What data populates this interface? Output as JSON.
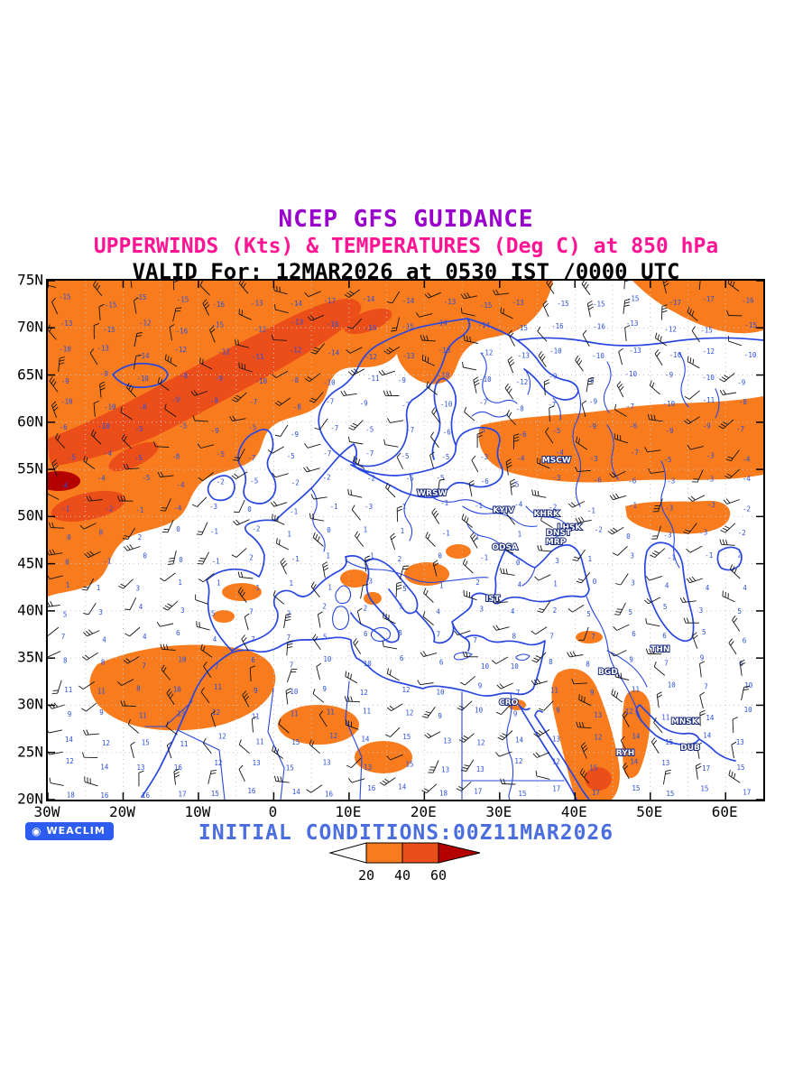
{
  "titles": {
    "line1": "NCEP GFS GUIDANCE",
    "line2": "UPPERWINDS (Kts) & TEMPERATURES (Deg C) at 850 hPa",
    "line3": "VALID For: 12MAR2026 at 0530 IST /0000 UTC"
  },
  "colors": {
    "title1": "#9900cc",
    "title2": "#ff1493",
    "title3": "#000000",
    "coast": "#2947e0",
    "shade20": "#f87c1e",
    "shade40": "#ec4e1a",
    "shade60": "#b50000",
    "barb": "#151515",
    "temp": "#2b4fd8",
    "grid": "#c4c4c4",
    "footer": "#4a6de0",
    "logo_bg": "#2d5cf0"
  },
  "axes": {
    "lat": [
      "75N",
      "70N",
      "65N",
      "60N",
      "55N",
      "50N",
      "45N",
      "40N",
      "35N",
      "30N",
      "25N",
      "20N"
    ],
    "lon": [
      "30W",
      "20W",
      "10W",
      "0",
      "10E",
      "20E",
      "30E",
      "40E",
      "50E",
      "60E"
    ]
  },
  "cities": [
    {
      "name": "MSCW",
      "fx": 0.711,
      "fy": 0.35
    },
    {
      "name": "WRSW",
      "fx": 0.537,
      "fy": 0.414
    },
    {
      "name": "KYIV",
      "fx": 0.637,
      "fy": 0.447
    },
    {
      "name": "KHRK",
      "fx": 0.697,
      "fy": 0.454
    },
    {
      "name": "LHSK",
      "fx": 0.729,
      "fy": 0.48
    },
    {
      "name": "DNST",
      "fx": 0.714,
      "fy": 0.49
    },
    {
      "name": "MRP",
      "fx": 0.71,
      "fy": 0.508
    },
    {
      "name": "ODSA",
      "fx": 0.639,
      "fy": 0.518
    },
    {
      "name": "IST",
      "fx": 0.622,
      "fy": 0.617
    },
    {
      "name": "THN",
      "fx": 0.856,
      "fy": 0.715
    },
    {
      "name": "BGD",
      "fx": 0.783,
      "fy": 0.758
    },
    {
      "name": "CRO",
      "fx": 0.644,
      "fy": 0.817
    },
    {
      "name": "MNSK",
      "fx": 0.89,
      "fy": 0.854
    },
    {
      "name": "RYH",
      "fx": 0.807,
      "fy": 0.915
    },
    {
      "name": "DUB",
      "fx": 0.898,
      "fy": 0.904
    }
  ],
  "legend": {
    "values": [
      "20",
      "40",
      "60"
    ]
  },
  "footer": {
    "text": "INITIAL CONDITIONS:00Z11MAR2026"
  },
  "logo": {
    "text": "WEACLIM",
    "icon": "◉"
  }
}
